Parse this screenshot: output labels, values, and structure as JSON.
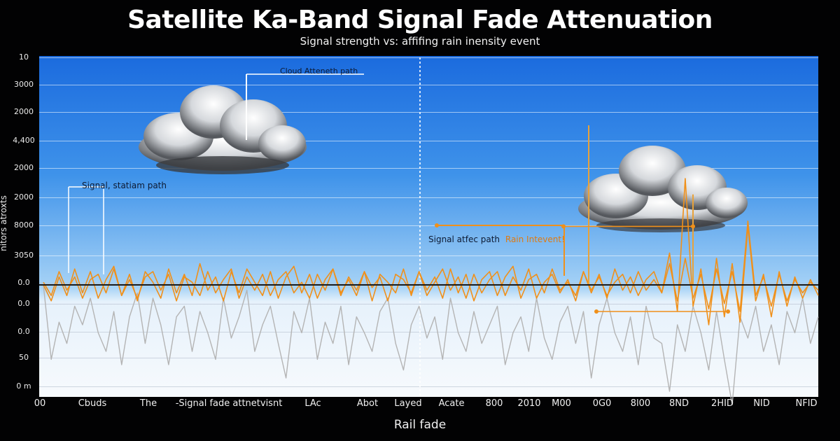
{
  "chart_data": {
    "type": "line",
    "title": "Satellite Ka-Band Signal Fade Attenuation",
    "subtitle": "Signal strength vs: affifing rain inensity event",
    "xlabel": "Rail fade",
    "ylabel": "nitors atroxts",
    "ytick_labels": [
      "10",
      "3000",
      "2000",
      "4,400",
      "2000",
      "2000",
      "8000",
      "3050",
      "0.0",
      "0.0",
      "0.0",
      "50",
      "0 m"
    ],
    "xtick_labels": [
      "00",
      "Cbuds",
      "The",
      "-Signal fade attnetvisnt",
      "LAc",
      "Abot",
      "Layed",
      "Acate",
      "800",
      "2010",
      "M00",
      "0G0",
      "8l00",
      "8ND",
      "2HID",
      "NID",
      "NFID"
    ],
    "annotations": [
      {
        "text": "Cloud Atteneth path"
      },
      {
        "text": "Signal, statiam path"
      },
      {
        "text": "Signal atfec path",
        "highlight": "Rain Intevent!"
      }
    ],
    "series": [
      {
        "role": "grey signal trace, rail fade",
        "color": "#b4b4b4",
        "values": [
          0,
          -28,
          -14,
          -22,
          -8,
          -15,
          -5,
          -18,
          -25,
          -10,
          -30,
          -12,
          -3,
          -22,
          -5,
          -15,
          -30,
          -12,
          -8,
          -25,
          -10,
          -18,
          -28,
          -5,
          -20,
          -12,
          -2,
          -25,
          -15,
          -8,
          -22,
          -35,
          -10,
          -18,
          -5,
          -28,
          -14,
          -22,
          -8,
          -30,
          -12,
          -18,
          -25,
          -10,
          -5,
          -22,
          -32,
          -15,
          -8,
          -20,
          -12,
          -28,
          -5,
          -18,
          -25,
          -10,
          -22,
          -15,
          -8,
          -30,
          -18,
          -12,
          -25,
          -5,
          -20,
          -28,
          -14,
          -8,
          -22,
          -10,
          -35,
          -15,
          -5,
          -18,
          -25,
          -12,
          -30,
          -8,
          -20,
          -22,
          -40,
          -15,
          -25,
          -8,
          -18,
          -32,
          -10,
          -28,
          -45,
          -12,
          -20,
          -8,
          -25,
          -15,
          -30,
          -10,
          -18,
          -5,
          -22,
          -12
        ]
      },
      {
        "role": "orange signal trace, rain intensity",
        "color": "#f0901a",
        "values": [
          0,
          -6,
          3,
          -4,
          6,
          -3,
          5,
          -5,
          2,
          7,
          -4,
          4,
          -6,
          5,
          1,
          -5,
          6,
          -3,
          4,
          -4,
          8,
          -2,
          3,
          -6,
          5,
          -3,
          6,
          1,
          -4,
          5,
          -5,
          3,
          7,
          -3,
          4,
          -5,
          2,
          6,
          -4,
          3,
          -2,
          5,
          -6,
          4,
          1,
          -3,
          6,
          -4,
          5,
          -2,
          3,
          -5,
          6,
          -3,
          4,
          -6,
          2,
          5,
          -4,
          3,
          7,
          -5,
          2,
          4,
          -3,
          6,
          -2,
          1,
          -4,
          5,
          -3,
          4,
          -5,
          6,
          -2,
          3,
          -4,
          2,
          5,
          -3,
          12,
          -10,
          40,
          -8,
          6,
          -15,
          10,
          -12,
          8,
          -14,
          22,
          -6,
          4,
          -12,
          5,
          -8,
          3,
          -5,
          2,
          -4
        ]
      },
      {
        "role": "orange signal trace, rain intensity",
        "color": "#f0901a",
        "values": [
          1,
          -4,
          5,
          -2,
          3,
          -5,
          2,
          4,
          -3,
          6,
          -4,
          2,
          -5,
          3,
          5,
          -2,
          4,
          -6,
          3,
          1,
          -4,
          5,
          -3,
          2,
          6,
          -5,
          3,
          -2,
          4,
          -4,
          2,
          5,
          -3,
          1,
          -5,
          4,
          -2,
          6,
          -3,
          2,
          -4,
          5,
          -1,
          3,
          -6,
          4,
          2,
          -3,
          5,
          -4,
          1,
          6,
          -2,
          3,
          -5,
          4,
          -3,
          2,
          5,
          -4,
          3,
          -2,
          6,
          -5,
          1,
          4,
          -3,
          2,
          -6,
          5,
          -2,
          3,
          -4,
          1,
          4,
          -3,
          5,
          -2,
          2,
          -3,
          8,
          -6,
          10,
          -5,
          4,
          -9,
          6,
          -7,
          5,
          -10,
          24,
          -4,
          3,
          -8,
          4,
          -6,
          2,
          -3,
          1,
          -2
        ]
      }
    ],
    "spikes": [
      {
        "color": "#e8a23a",
        "value": 60
      },
      {
        "color": "#e8a23a",
        "value": 34
      }
    ],
    "markers": [
      {
        "color": "#f0901a",
        "value": 22
      },
      {
        "color": "#f0901a",
        "value": -10
      }
    ],
    "grid": true,
    "legend": "none",
    "colors": {
      "sky_top": "#1e6fe0",
      "sky_mid": "#8cc6f4",
      "floor": "#f4f8fc",
      "orange": "#f0901a",
      "grey": "#b4b4b4"
    }
  }
}
